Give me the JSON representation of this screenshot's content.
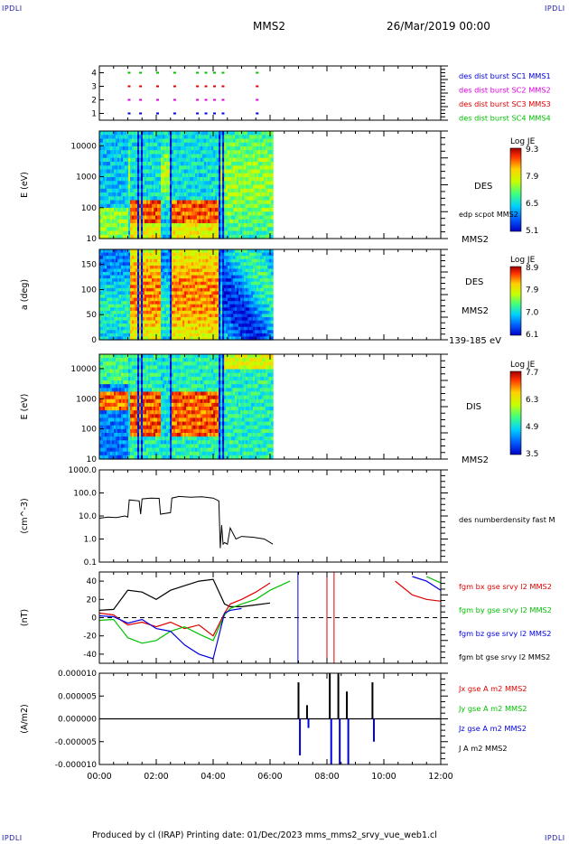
{
  "corners": {
    "tl": "IPDLI",
    "tr": "IPDLI",
    "bl": "IPDLI",
    "br": "IPDLI"
  },
  "header": {
    "mission": "MMS2",
    "date": "26/Mar/2019 00:00"
  },
  "footer": {
    "text": "Produced by cl (IRAP)   Printing date: 01/Dec/2023   mms_mms2_srvy_vue_web1.cl"
  },
  "colors": {
    "red": "#e00000",
    "green": "#00c000",
    "blue": "#0000e0",
    "magenta": "#e000e0"
  },
  "time_axis": {
    "ticks": [
      "00:00",
      "02:00",
      "04:00",
      "06:00",
      "08:00",
      "10:00",
      "12:00"
    ],
    "range_hours": [
      0,
      12
    ]
  },
  "chart_data": [
    {
      "type": "scatter",
      "panel": "burst",
      "yticks": [
        "1",
        "2",
        "3",
        "4"
      ],
      "ylim": [
        0.5,
        4.5
      ],
      "legend": [
        {
          "label": "des dist burst SC1 MMS1",
          "color": "#0000e0"
        },
        {
          "label": "des dist burst SC2 MMS2",
          "color": "#e000e0"
        },
        {
          "label": "des dist burst SC3 MMS3",
          "color": "#e00000"
        },
        {
          "label": "des dist burst SC4 MMS4",
          "color": "#00c000"
        }
      ],
      "series": [
        {
          "level": 4,
          "color": "#00c000",
          "x": [
            1.0,
            1.4,
            2.0,
            2.6,
            3.4,
            3.7,
            4.0,
            4.3,
            5.5
          ]
        },
        {
          "level": 3,
          "color": "#e00000",
          "x": [
            1.0,
            1.4,
            2.0,
            2.6,
            3.4,
            3.7,
            4.0,
            4.3,
            5.5
          ]
        },
        {
          "level": 2,
          "color": "#e000e0",
          "x": [
            1.0,
            1.4,
            2.0,
            2.6,
            3.4,
            3.7,
            4.0,
            4.3,
            5.5
          ]
        },
        {
          "level": 1,
          "color": "#0000e0",
          "x": [
            1.0,
            1.4,
            2.0,
            2.6,
            3.4,
            3.7,
            4.0,
            4.3,
            5.5
          ]
        }
      ]
    },
    {
      "type": "heatmap",
      "panel": "des-energy",
      "ylabel": "E (eV)",
      "yscale": "log",
      "ylim": [
        10,
        30000
      ],
      "yticks": [
        "10",
        "100",
        "1000",
        "10000"
      ],
      "labels": [
        "DES",
        "edp scpot MMS2",
        "MMS2"
      ],
      "colorbar": {
        "title": "Log JE",
        "ticks": [
          "9.3",
          "7.9",
          "6.5",
          "5.1"
        ],
        "range": [
          5.1,
          9.3
        ]
      },
      "xlim_data": [
        0,
        6.1
      ]
    },
    {
      "type": "heatmap",
      "panel": "des-pitch",
      "ylabel": "a (deg)",
      "ylim": [
        0,
        180
      ],
      "yticks": [
        "0",
        "50",
        "100",
        "150"
      ],
      "labels": [
        "DES",
        "MMS2",
        "139-185 eV"
      ],
      "colorbar": {
        "title": "Log JE",
        "ticks": [
          "8.9",
          "7.9",
          "7.0",
          "6.1"
        ],
        "range": [
          6.1,
          8.9
        ]
      },
      "xlim_data": [
        0,
        6.1
      ]
    },
    {
      "type": "heatmap",
      "panel": "dis-energy",
      "ylabel": "E (eV)",
      "yscale": "log",
      "ylim": [
        10,
        30000
      ],
      "yticks": [
        "10",
        "100",
        "1000",
        "10000"
      ],
      "labels": [
        "DIS",
        "MMS2"
      ],
      "colorbar": {
        "title": "Log JE",
        "ticks": [
          "7.7",
          "6.3",
          "4.9",
          "3.5"
        ],
        "range": [
          3.5,
          7.7
        ]
      },
      "xlim_data": [
        0,
        6.1
      ]
    },
    {
      "type": "line",
      "panel": "density",
      "ylabel": "(cm^-3)",
      "yscale": "log",
      "ylim": [
        0.1,
        1000
      ],
      "yticks": [
        "0.1",
        "1.0",
        "10.0",
        "100.0",
        "1000.0"
      ],
      "legend": [
        {
          "label": "des numberdensity fast M",
          "color": "#000000"
        }
      ],
      "x": [
        0.0,
        0.3,
        0.6,
        0.9,
        1.0,
        1.05,
        1.4,
        1.45,
        1.5,
        1.8,
        2.1,
        2.15,
        2.5,
        2.55,
        2.8,
        3.2,
        3.6,
        4.0,
        4.2,
        4.25,
        4.3,
        4.35,
        4.4,
        4.5,
        4.6,
        4.8,
        5.0,
        5.4,
        5.8,
        6.1
      ],
      "y": [
        8,
        9,
        8.5,
        10,
        9,
        50,
        45,
        12,
        55,
        60,
        58,
        12,
        14,
        60,
        70,
        65,
        68,
        60,
        45,
        0.4,
        4,
        0.6,
        0.7,
        0.6,
        3,
        1.0,
        1.3,
        1.2,
        1.0,
        0.6
      ]
    },
    {
      "type": "line",
      "panel": "fgm",
      "ylabel": "(nT)",
      "ylim": [
        -50,
        50
      ],
      "yticks": [
        "-40",
        "-20",
        "0",
        "20",
        "40"
      ],
      "legend": [
        {
          "label": "fgm bx gse srvy l2 MMS2",
          "color": "#e00000"
        },
        {
          "label": "fgm by gse srvy l2 MMS2",
          "color": "#00c000"
        },
        {
          "label": "fgm bz gse srvy l2 MMS2",
          "color": "#0000e0"
        },
        {
          "label": "fgm bt gse srvy l2 MMS2",
          "color": "#000000"
        }
      ],
      "series": [
        {
          "name": "bt",
          "color": "#000000",
          "x": [
            0,
            0.5,
            1.0,
            1.5,
            2.0,
            2.5,
            3.0,
            3.5,
            4.0,
            4.4,
            4.6,
            5.0,
            5.5,
            6.0
          ],
          "y": [
            8,
            9,
            30,
            28,
            20,
            30,
            35,
            40,
            42,
            15,
            12,
            12,
            14,
            16
          ]
        },
        {
          "name": "bx",
          "color": "#e00000",
          "x": [
            0,
            0.5,
            1.0,
            1.5,
            2.0,
            2.5,
            3.0,
            3.5,
            4.0,
            4.4,
            4.6,
            5.0,
            5.5,
            6.0,
            10.4,
            11.0,
            11.5,
            12.0
          ],
          "y": [
            5,
            3,
            -8,
            -5,
            -10,
            -5,
            -12,
            -8,
            -20,
            5,
            15,
            20,
            28,
            38,
            40,
            25,
            20,
            18
          ]
        },
        {
          "name": "by",
          "color": "#00c000",
          "x": [
            0,
            0.5,
            1.0,
            1.5,
            2.0,
            2.5,
            3.0,
            3.5,
            4.0,
            4.4,
            4.6,
            5.0,
            5.5,
            6.0,
            6.7,
            11.5,
            12.0
          ],
          "y": [
            -3,
            -2,
            -22,
            -28,
            -25,
            -15,
            -10,
            -18,
            -25,
            3,
            10,
            15,
            20,
            30,
            40,
            45,
            38
          ]
        },
        {
          "name": "bz",
          "color": "#0000e0",
          "x": [
            0,
            0.5,
            1.0,
            1.5,
            2.0,
            2.5,
            3.0,
            3.5,
            4.0,
            4.4,
            4.6,
            5.0,
            11.0,
            11.5,
            12.0
          ],
          "y": [
            2,
            1,
            -6,
            -2,
            -12,
            -15,
            -30,
            -40,
            -45,
            5,
            8,
            10,
            45,
            40,
            30
          ]
        }
      ],
      "vertical_lines": [
        {
          "x": 6.98,
          "color": "#0000e0"
        },
        {
          "x": 8.0,
          "color": "#e00000"
        },
        {
          "x": 8.25,
          "color": "#e00000"
        }
      ]
    },
    {
      "type": "line",
      "panel": "current",
      "ylabel": "(A/m2)",
      "ylim": [
        -1e-05,
        1e-05
      ],
      "yticks": [
        "-0.000010",
        "-0.000005",
        "0.000000",
        "0.000005",
        "0.000010"
      ],
      "legend": [
        {
          "label": "Jx gse A m2 MMS2",
          "color": "#e00000"
        },
        {
          "label": "Jy gse A m2 MMS2",
          "color": "#00c000"
        },
        {
          "label": "Jz gse A m2 MMS2",
          "color": "#0000e0"
        },
        {
          "label": "J A m2 MMS2",
          "color": "#000000"
        }
      ]
    }
  ]
}
